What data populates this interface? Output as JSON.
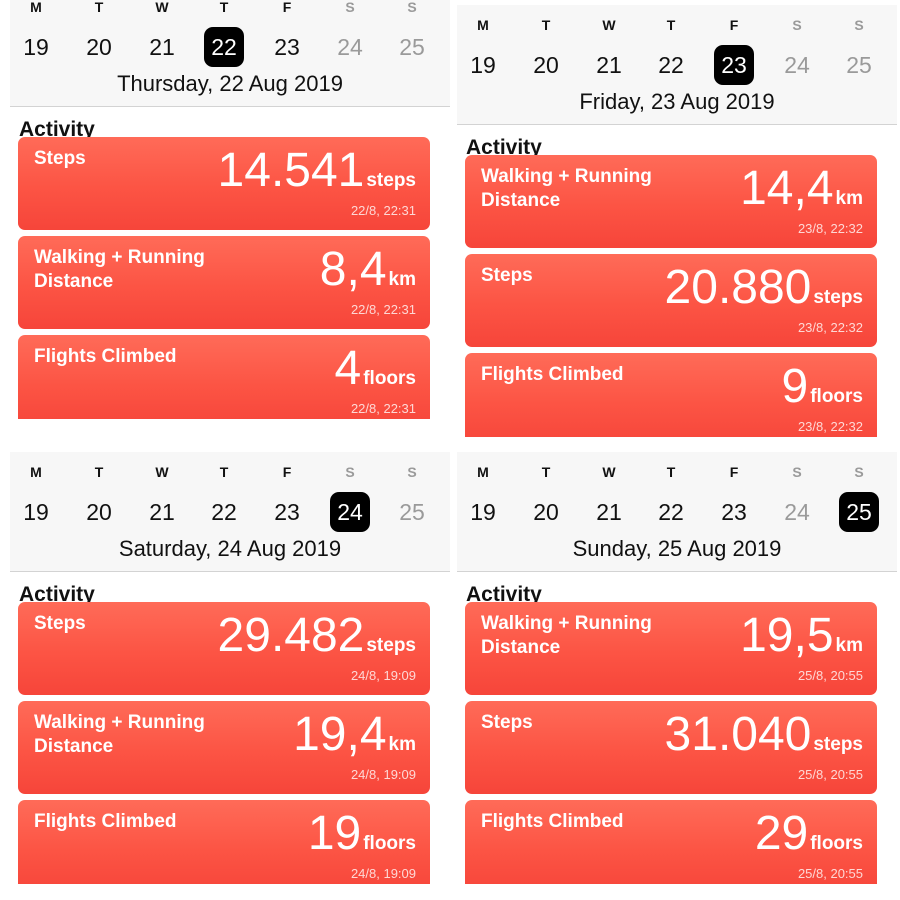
{
  "panels": [
    {
      "weekday_letters": [
        "M",
        "T",
        "W",
        "T",
        "F",
        "S",
        "S"
      ],
      "dates": [
        "19",
        "20",
        "21",
        "22",
        "23",
        "24",
        "25"
      ],
      "selected_index": 3,
      "date_label": "Thursday, 22 Aug 2019",
      "section_title": "Activity",
      "cards": [
        {
          "title": "Steps",
          "value": "14.541",
          "unit": "steps",
          "time": "22/8, 22:31"
        },
        {
          "title": "Walking + Running Distance",
          "value": "8,4",
          "unit": "km",
          "time": "22/8, 22:31"
        },
        {
          "title": "Flights Climbed",
          "value": "4",
          "unit": "floors",
          "time": "22/8, 22:31"
        }
      ]
    },
    {
      "weekday_letters": [
        "M",
        "T",
        "W",
        "T",
        "F",
        "S",
        "S"
      ],
      "dates": [
        "19",
        "20",
        "21",
        "22",
        "23",
        "24",
        "25"
      ],
      "selected_index": 4,
      "date_label": "Friday, 23 Aug 2019",
      "section_title": "Activity",
      "cards": [
        {
          "title": "Walking + Running Distance",
          "value": "14,4",
          "unit": "km",
          "time": "23/8, 22:32"
        },
        {
          "title": "Steps",
          "value": "20.880",
          "unit": "steps",
          "time": "23/8, 22:32"
        },
        {
          "title": "Flights Climbed",
          "value": "9",
          "unit": "floors",
          "time": "23/8, 22:32"
        }
      ]
    },
    {
      "weekday_letters": [
        "M",
        "T",
        "W",
        "T",
        "F",
        "S",
        "S"
      ],
      "dates": [
        "19",
        "20",
        "21",
        "22",
        "23",
        "24",
        "25"
      ],
      "selected_index": 5,
      "date_label": "Saturday, 24 Aug 2019",
      "section_title": "Activity",
      "cards": [
        {
          "title": "Steps",
          "value": "29.482",
          "unit": "steps",
          "time": "24/8, 19:09"
        },
        {
          "title": "Walking + Running Distance",
          "value": "19,4",
          "unit": "km",
          "time": "24/8, 19:09"
        },
        {
          "title": "Flights Climbed",
          "value": "19",
          "unit": "floors",
          "time": "24/8, 19:09"
        }
      ]
    },
    {
      "weekday_letters": [
        "M",
        "T",
        "W",
        "T",
        "F",
        "S",
        "S"
      ],
      "dates": [
        "19",
        "20",
        "21",
        "22",
        "23",
        "24",
        "25"
      ],
      "selected_index": 6,
      "date_label": "Sunday, 25 Aug 2019",
      "section_title": "Activity",
      "cards": [
        {
          "title": "Walking + Running Distance",
          "value": "19,5",
          "unit": "km",
          "time": "25/8, 20:55"
        },
        {
          "title": "Steps",
          "value": "31.040",
          "unit": "steps",
          "time": "25/8, 20:55"
        },
        {
          "title": "Flights Climbed",
          "value": "29",
          "unit": "floors",
          "time": "25/8, 20:55"
        }
      ]
    }
  ],
  "colors": {
    "card_red": "#fc5444",
    "selected_day_bg": "#000000",
    "weekend_gray": "#9a9a9a",
    "header_bg": "#f7f7f7"
  }
}
